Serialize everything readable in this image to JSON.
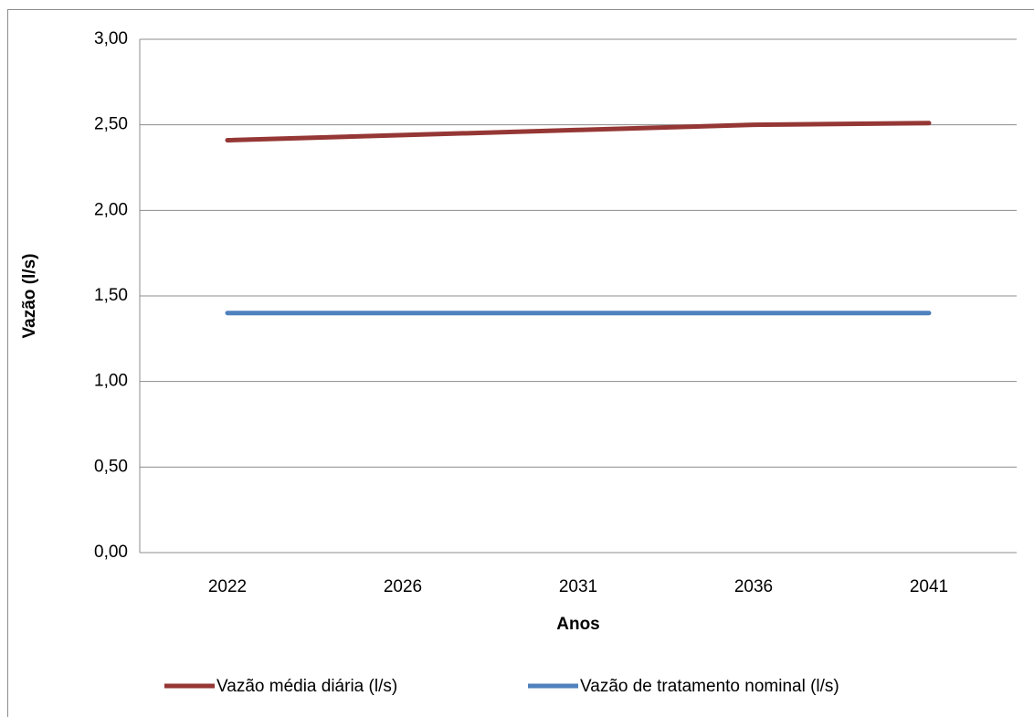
{
  "chart_data": {
    "type": "line",
    "xlabel": "Anos",
    "ylabel": "Vazão (l/s)",
    "categories": [
      "2022",
      "2026",
      "2031",
      "2036",
      "2041"
    ],
    "series": [
      {
        "name": "Vazão média diária (l/s)",
        "color": "#953735",
        "values": [
          2.41,
          2.44,
          2.47,
          2.5,
          2.51
        ]
      },
      {
        "name": "Vazão de tratamento nominal (l/s)",
        "color": "#4f81bd",
        "values": [
          1.4,
          1.4,
          1.4,
          1.4,
          1.4
        ]
      }
    ],
    "ylim": [
      0,
      3
    ],
    "yticks": [
      {
        "value": 0,
        "label": "0,00"
      },
      {
        "value": 0.5,
        "label": "0,50"
      },
      {
        "value": 1,
        "label": "1,00"
      },
      {
        "value": 1.5,
        "label": "1,50"
      },
      {
        "value": 2,
        "label": "2,00"
      },
      {
        "value": 2.5,
        "label": "2,50"
      },
      {
        "value": 3,
        "label": "3,00"
      }
    ],
    "grid": true,
    "legend": "bottom"
  }
}
